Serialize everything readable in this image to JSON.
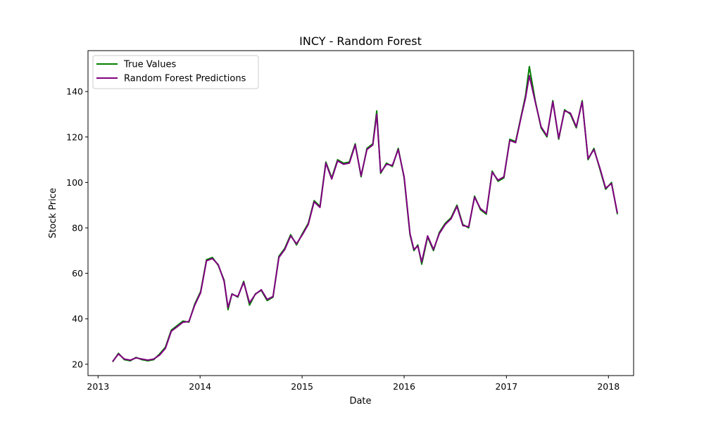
{
  "chart_data": {
    "type": "line",
    "title": "INCY - Random Forest",
    "xlabel": "Date",
    "ylabel": "Stock Price",
    "x_ticks": [
      "2013",
      "2014",
      "2015",
      "2016",
      "2017",
      "2018"
    ],
    "x_tick_dates": [
      "2013-01-01",
      "2014-01-01",
      "2015-01-01",
      "2016-01-01",
      "2017-01-01",
      "2018-01-01"
    ],
    "xlim": [
      "2012-11-26",
      "2018-04-01"
    ],
    "y_ticks": [
      20,
      40,
      60,
      80,
      100,
      120,
      140
    ],
    "ylim": [
      15,
      158
    ],
    "grid": false,
    "legend_position": "top-left",
    "x": [
      "2013-02-22",
      "2013-03-15",
      "2013-04-05",
      "2013-04-26",
      "2013-05-17",
      "2013-06-07",
      "2013-06-28",
      "2013-07-19",
      "2013-08-09",
      "2013-08-30",
      "2013-09-20",
      "2013-10-11",
      "2013-11-01",
      "2013-11-22",
      "2013-12-13",
      "2014-01-03",
      "2014-01-24",
      "2014-02-14",
      "2014-03-07",
      "2014-03-28",
      "2014-04-11",
      "2014-04-25",
      "2014-05-16",
      "2014-06-06",
      "2014-06-27",
      "2014-07-18",
      "2014-08-08",
      "2014-08-29",
      "2014-09-19",
      "2014-10-10",
      "2014-10-31",
      "2014-11-21",
      "2014-12-12",
      "2015-01-02",
      "2015-01-23",
      "2015-02-13",
      "2015-03-06",
      "2015-03-27",
      "2015-04-17",
      "2015-05-08",
      "2015-05-29",
      "2015-06-19",
      "2015-07-10",
      "2015-07-31",
      "2015-08-21",
      "2015-09-11",
      "2015-09-25",
      "2015-10-09",
      "2015-10-30",
      "2015-11-20",
      "2015-12-11",
      "2016-01-01",
      "2016-01-22",
      "2016-02-05",
      "2016-02-19",
      "2016-03-04",
      "2016-03-25",
      "2016-04-15",
      "2016-05-06",
      "2016-05-27",
      "2016-06-17",
      "2016-07-08",
      "2016-07-29",
      "2016-08-19",
      "2016-09-09",
      "2016-09-30",
      "2016-10-21",
      "2016-11-11",
      "2016-12-02",
      "2016-12-23",
      "2017-01-13",
      "2017-02-03",
      "2017-02-24",
      "2017-03-10",
      "2017-03-24",
      "2017-04-14",
      "2017-05-05",
      "2017-05-26",
      "2017-06-16",
      "2017-07-07",
      "2017-07-28",
      "2017-08-18",
      "2017-09-08",
      "2017-09-29",
      "2017-10-20",
      "2017-11-10",
      "2017-12-01",
      "2017-12-22",
      "2018-01-12",
      "2018-02-02"
    ],
    "series": [
      {
        "name": "True Values",
        "color": "#008000",
        "values": [
          21,
          24.8,
          22,
          21.5,
          23,
          22,
          21.5,
          22,
          24.5,
          27.5,
          35,
          37,
          39,
          38.5,
          46.5,
          52,
          66,
          67,
          63.5,
          57,
          44,
          51,
          49.5,
          56.5,
          46,
          51,
          52.5,
          48,
          49.5,
          67.5,
          71,
          77,
          72.5,
          77.5,
          82,
          92,
          89.5,
          109,
          102,
          110,
          108.5,
          109,
          117,
          102.5,
          115,
          117,
          131.5,
          104,
          108.5,
          107,
          115,
          102,
          77,
          70,
          72.5,
          64,
          76,
          70,
          78,
          82,
          84.5,
          90,
          81.5,
          80,
          94,
          88,
          86,
          105,
          100.5,
          102,
          119,
          118,
          130,
          138,
          151,
          136,
          124,
          120,
          136,
          119,
          132,
          130,
          124,
          136,
          110,
          115,
          106,
          97,
          100,
          86
        ]
      },
      {
        "name": "Random Forest Predictions",
        "color": "#800080",
        "values": [
          21.2,
          24.5,
          22.3,
          21.8,
          22.8,
          22.3,
          21.8,
          22.3,
          24,
          27,
          34.5,
          36.5,
          38.5,
          38.8,
          46,
          51.5,
          65.5,
          66.5,
          63.8,
          56.5,
          45,
          50.8,
          49.8,
          56,
          47,
          50.8,
          52.8,
          48.5,
          49.8,
          67,
          70.5,
          76.5,
          73,
          77,
          81.5,
          91.5,
          89,
          108.5,
          101.5,
          109.5,
          108,
          108.5,
          116.5,
          103,
          114.5,
          116.5,
          130,
          104.5,
          108,
          107.5,
          114.5,
          102.5,
          77.5,
          70.5,
          72,
          65,
          76.5,
          70.5,
          77.5,
          81.5,
          84,
          89.5,
          81,
          80.5,
          93.5,
          88.5,
          86.5,
          104.5,
          101,
          102.5,
          118.5,
          117.5,
          129.5,
          137,
          147,
          135.5,
          124.5,
          120.5,
          135.5,
          119.5,
          131.5,
          130.5,
          124.5,
          135.5,
          110.5,
          114.5,
          106.5,
          97.5,
          99.5,
          86.5
        ]
      }
    ]
  }
}
